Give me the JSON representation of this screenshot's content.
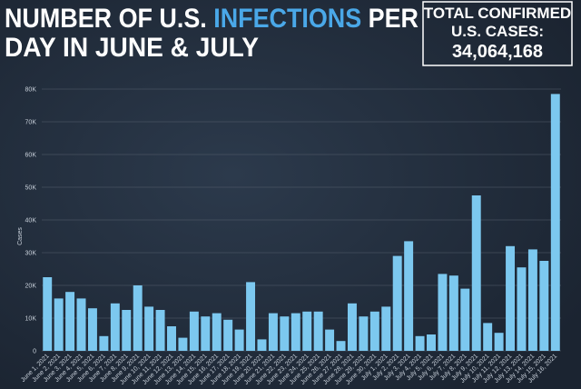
{
  "chart_data": {
    "type": "bar",
    "title_line1": [
      "NUMBER OF U.S.",
      "INFECTIONS",
      "PER"
    ],
    "title_line2": "DAY IN JUNE & JULY",
    "total_box": {
      "lines": [
        "TOTAL CONFIRMED",
        "U.S. CASES:"
      ],
      "value": "34,064,168"
    },
    "ylabel": "Cases",
    "categories": [
      "June 1, 2021",
      "June 2, 2021",
      "June 3, 2021",
      "June 4, 2021",
      "June 5, 2021",
      "June 6, 2021",
      "June 7, 2021",
      "June 8, 2021",
      "June 9, 2021",
      "June 10, 2021",
      "June 11, 2021",
      "June 12, 2021",
      "June 13, 2021",
      "June 14, 2021",
      "June 15, 2021",
      "June 16, 2021",
      "June 17, 2021",
      "June 18, 2021",
      "June 19, 2021",
      "June 20, 2021",
      "June 21, 2021",
      "June 22, 2021",
      "June 23, 2021",
      "June 24, 2021",
      "June 25, 2021",
      "June 26, 2021",
      "June 27, 2021",
      "June 28, 2021",
      "June 29, 2021",
      "June 30, 2021",
      "July 1, 2021",
      "July 2, 2021",
      "July 3, 2021",
      "July 4, 2021",
      "July 5, 2021",
      "July 6, 2021",
      "July 7, 2021",
      "July 8, 2021",
      "July 9, 2021",
      "July 10, 2021",
      "July 11, 2021",
      "July 12, 2021",
      "July 13, 2021",
      "July 14, 2021",
      "July 15, 2021",
      "July 16, 2021"
    ],
    "values": [
      22500,
      16000,
      18000,
      16000,
      13000,
      4500,
      14500,
      12500,
      20000,
      13500,
      12500,
      7500,
      4000,
      12000,
      10500,
      11500,
      9500,
      6500,
      21000,
      3500,
      11500,
      10500,
      11500,
      12000,
      12000,
      6500,
      3000,
      14500,
      10500,
      12000,
      13500,
      29000,
      33500,
      4500,
      5000,
      23500,
      23000,
      19000,
      47500,
      8500,
      5500,
      32000,
      25500,
      31000,
      27500,
      78500
    ],
    "color": "#7cc8ef",
    "ylim": [
      0,
      80000
    ],
    "yticks": [
      0,
      {
        "value": 10000,
        "label": "10K"
      },
      {
        "value": 20000,
        "label": "20K"
      },
      {
        "value": 30000,
        "label": "30K"
      },
      {
        "value": 40000,
        "label": "40K"
      },
      {
        "value": 50000,
        "label": "50K"
      },
      {
        "value": 60000,
        "label": "60K"
      },
      {
        "value": 70000,
        "label": "70K"
      },
      {
        "value": 80000,
        "label": "80K"
      }
    ],
    "grid": true
  }
}
